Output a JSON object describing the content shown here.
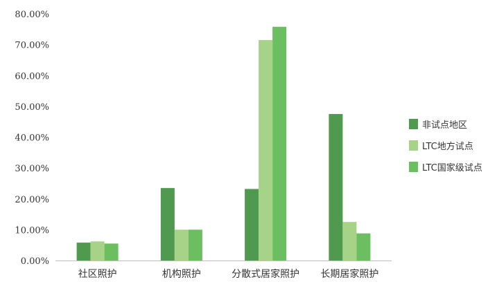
{
  "chart_data": {
    "type": "bar",
    "categories": [
      "社区照护",
      "机构照护",
      "分散式居家照护",
      "长期居家照护"
    ],
    "series": [
      {
        "name": "非试点地区",
        "color": "#4f9a4f",
        "values": [
          5.8,
          23.5,
          23.2,
          47.5
        ]
      },
      {
        "name": "LTC地方试点",
        "color": "#a6d387",
        "values": [
          6.2,
          10.0,
          71.5,
          12.5
        ]
      },
      {
        "name": "LTC国家级试点",
        "color": "#6cbf60",
        "values": [
          5.5,
          10.0,
          75.8,
          8.8
        ]
      }
    ],
    "ylim": [
      0,
      80
    ],
    "yticks": [
      0,
      10,
      20,
      30,
      40,
      50,
      60,
      70,
      80
    ],
    "ytick_labels": [
      "0.00%",
      "10.00%",
      "20.00%",
      "30.00%",
      "40.00%",
      "50.00%",
      "60.00%",
      "70.00%",
      "80.00%"
    ],
    "title": "",
    "xlabel": "",
    "ylabel": "",
    "grid": false,
    "legend_position": "right"
  }
}
